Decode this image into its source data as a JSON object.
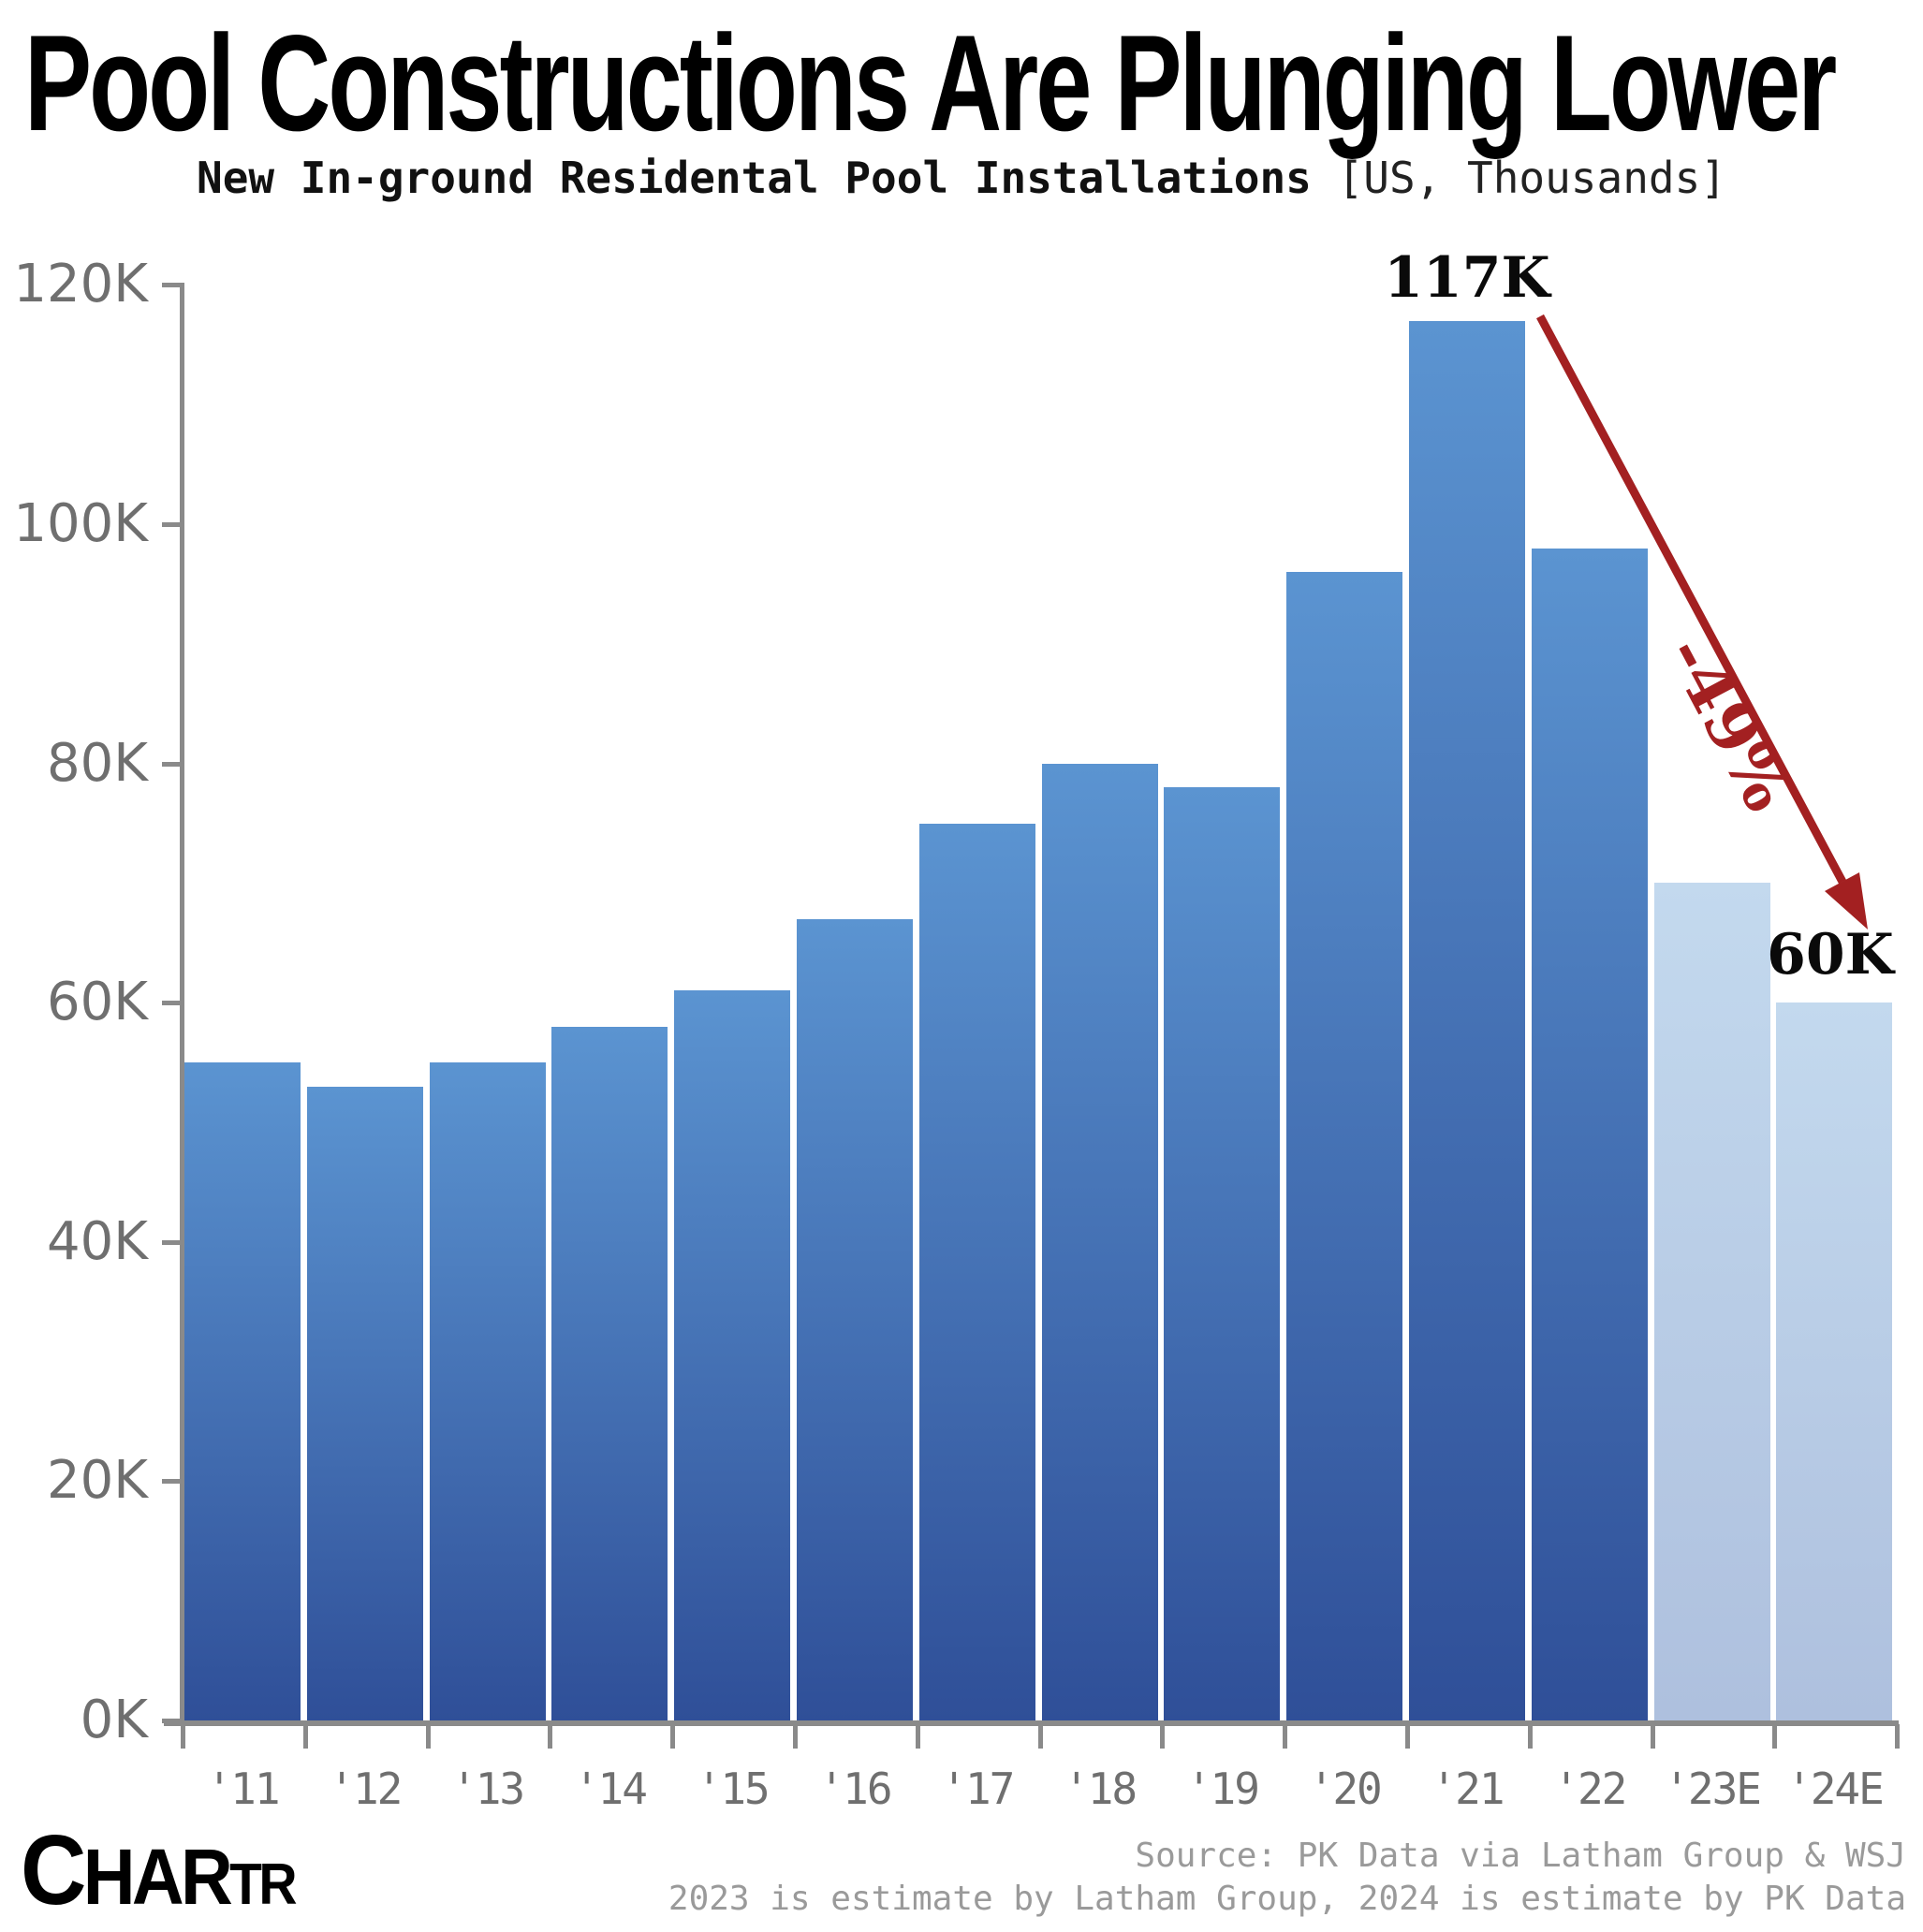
{
  "header": {
    "title": "Pool Constructions Are Plunging Lower",
    "subtitle_bold": "New In-ground Residental Pool Installations",
    "subtitle_light": "[US, Thousands]"
  },
  "annotations": {
    "peak_label": "117K",
    "end_label": "60K",
    "pct_label": "-49%"
  },
  "logo": {
    "part1": "C",
    "part2": "HAR",
    "part3": "TR"
  },
  "footer": {
    "line1": "Source: PK Data via Latham Group & WSJ",
    "line2": "2023 is estimate by Latham Group, 2024 is estimate by PK Data"
  },
  "colors": {
    "bar_dark_top": "#5B94D1",
    "bar_dark_bottom": "#2F4F98",
    "bar_light_top": "#C3D9EE",
    "bar_light_bottom": "#AEC0DE",
    "arrow": "#A32021",
    "axis": "#8A8A8A"
  },
  "chart_data": {
    "type": "bar",
    "title": "Pool Constructions Are Plunging Lower",
    "subtitle": "New In-ground Residental Pool Installations [US, Thousands]",
    "categories": [
      "'11",
      "'12",
      "'13",
      "'14",
      "'15",
      "'16",
      "'17",
      "'18",
      "'19",
      "'20",
      "'21",
      "'22",
      "'23E",
      "'24E"
    ],
    "values": [
      55,
      53,
      55,
      58,
      61,
      67,
      75,
      80,
      78,
      96,
      117,
      98,
      70,
      60
    ],
    "estimate_flags": [
      false,
      false,
      false,
      false,
      false,
      false,
      false,
      false,
      false,
      false,
      false,
      false,
      true,
      true
    ],
    "unit": "K",
    "ylim": [
      0,
      120
    ],
    "y_tick_values": [
      0,
      20,
      40,
      60,
      80,
      100,
      120
    ],
    "y_tick_labels": [
      "0K",
      "20K",
      "40K",
      "60K",
      "80K",
      "100K",
      "120K"
    ],
    "grid": false,
    "legend": "none",
    "annotations": {
      "peak": {
        "category": "'21",
        "value": 117,
        "label": "117K"
      },
      "end": {
        "category": "'24E",
        "value": 60,
        "label": "60K"
      },
      "decline_pct": "-49%"
    }
  }
}
